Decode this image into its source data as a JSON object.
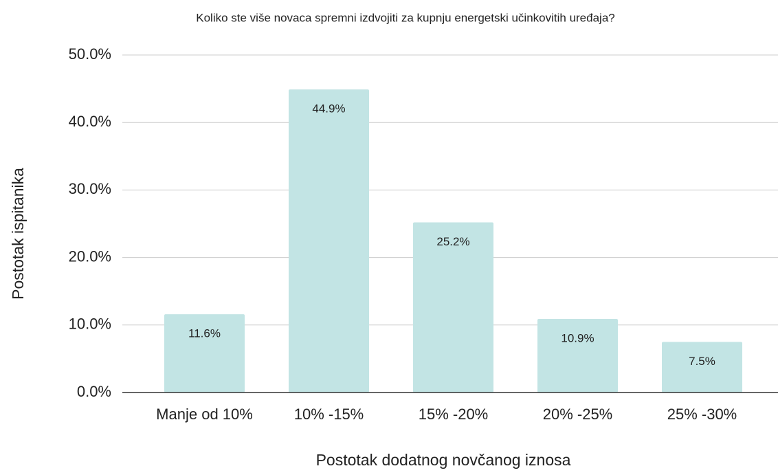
{
  "chart_data": {
    "type": "bar",
    "title": "Koliko ste više novaca spremni izdvojiti za kupnju energetski učinkovitih uređaja?",
    "x_label": "Postotak dodatnog novčanog iznosa",
    "y_label": "Postotak ispitanika",
    "categories": [
      "Manje od 10%",
      "10% -15%",
      "15% -20%",
      "20% -25%",
      "25% -30%"
    ],
    "values": [
      11.6,
      44.9,
      25.2,
      10.9,
      7.5
    ],
    "value_labels": [
      "11.6%",
      "44.9%",
      "25.2%",
      "10.9%",
      "7.5%"
    ],
    "color": "#c2e4e4",
    "ylim": [
      0,
      50
    ],
    "yticks": [
      {
        "value": 0,
        "label": "0.0%"
      },
      {
        "value": 10,
        "label": "10.0%"
      },
      {
        "value": 20,
        "label": "20.0%"
      },
      {
        "value": 30,
        "label": "30.0%"
      },
      {
        "value": 40,
        "label": "40.0%"
      },
      {
        "value": 50,
        "label": "50.0%"
      }
    ],
    "grid": true
  }
}
